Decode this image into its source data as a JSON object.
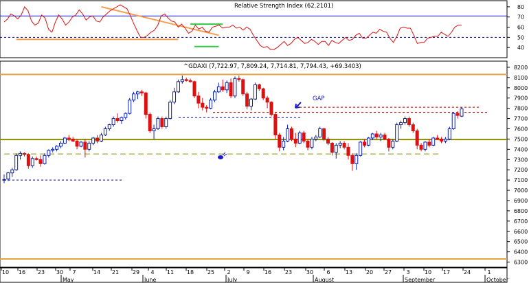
{
  "chart_data": [
    {
      "type": "line",
      "title": "Relative Strength Index (62.2101)",
      "y_ticks": [
        40,
        50,
        60,
        70,
        80
      ],
      "ylim": [
        30,
        86
      ],
      "reference_lines": [
        {
          "value": 71,
          "style": "solid",
          "color": "#1a1acc"
        },
        {
          "value": 50,
          "style": "dashed",
          "color": "#000080"
        }
      ],
      "series": [
        {
          "color": "#dd1111",
          "values": [
            65,
            68,
            73,
            71,
            68,
            72,
            80,
            76,
            66,
            62,
            64,
            72,
            69,
            58,
            55,
            65,
            72,
            68,
            62,
            65,
            70,
            72,
            77,
            73,
            67,
            70,
            71,
            66,
            65,
            70,
            73,
            76,
            78,
            80,
            82,
            80,
            78,
            71,
            63,
            56,
            50,
            50,
            52,
            55,
            57,
            62,
            71,
            73,
            69,
            66,
            65,
            60,
            63,
            59,
            54,
            56,
            62,
            58,
            60,
            56,
            55,
            60,
            61,
            62,
            59,
            60,
            60,
            62,
            59,
            60,
            57,
            60,
            58,
            52,
            47,
            42,
            40,
            41,
            38,
            38,
            40,
            43,
            46,
            42,
            44,
            48,
            50,
            47,
            44,
            45,
            48,
            46,
            43,
            46,
            46,
            42,
            47,
            45,
            44,
            47,
            50,
            47,
            48,
            52,
            54,
            49,
            49,
            52,
            55,
            54,
            58,
            56,
            55,
            49,
            45,
            51,
            59,
            60,
            59,
            59,
            52,
            44,
            45,
            45,
            49,
            50,
            51,
            51,
            55,
            53,
            51,
            55,
            60,
            62,
            62
          ]
        }
      ],
      "annotations": [
        {
          "type": "trendline",
          "color": "#f5a050",
          "from": [
            24,
            80
          ],
          "to": [
            53,
            52
          ]
        },
        {
          "type": "trendline",
          "color": "#f5a050",
          "from": [
            3,
            48
          ],
          "to": [
            43,
            48
          ]
        },
        {
          "type": "trendline",
          "color": "#2ecc40",
          "from": [
            46,
            63
          ],
          "to": [
            54,
            63
          ]
        },
        {
          "type": "trendline",
          "color": "#2ecc40",
          "from": [
            47,
            41
          ],
          "to": [
            53,
            41
          ]
        }
      ]
    },
    {
      "type": "candlestick",
      "title": "^GDAXI (7,722.97, 7,809.24, 7,714.81, 7,794.43, +69.3403)",
      "ylim": [
        6250,
        8260
      ],
      "y_ticks": [
        6300,
        6400,
        6500,
        6600,
        6700,
        6800,
        6900,
        7000,
        7100,
        7200,
        7300,
        7400,
        7500,
        7600,
        7700,
        7800,
        7900,
        8000,
        8100,
        8200
      ],
      "x_ticks": [
        "10",
        "16",
        "23",
        "30",
        "7",
        "14",
        "21",
        "29",
        "4",
        "11",
        "18",
        "25",
        "2",
        "9",
        "16",
        "23",
        "30",
        "6",
        "13",
        "20",
        "27",
        "3",
        "10",
        "17",
        "24",
        "1"
      ],
      "month_labels": [
        "May",
        "June",
        "July",
        "August",
        "September",
        "October"
      ],
      "colors": {
        "up": "#0b1fa8",
        "down": "#dd1111"
      },
      "candles": [
        {
          "o": 7100,
          "h": 7155,
          "l": 7070,
          "c": 7105
        },
        {
          "o": 7110,
          "h": 7180,
          "l": 7090,
          "c": 7170
        },
        {
          "o": 7170,
          "h": 7220,
          "l": 7130,
          "c": 7200
        },
        {
          "o": 7200,
          "h": 7360,
          "l": 7190,
          "c": 7340
        },
        {
          "o": 7340,
          "h": 7380,
          "l": 7300,
          "c": 7360
        },
        {
          "o": 7360,
          "h": 7370,
          "l": 7330,
          "c": 7350
        },
        {
          "o": 7350,
          "h": 7360,
          "l": 7210,
          "c": 7240
        },
        {
          "o": 7240,
          "h": 7330,
          "l": 7220,
          "c": 7310
        },
        {
          "o": 7310,
          "h": 7330,
          "l": 7290,
          "c": 7300
        },
        {
          "o": 7300,
          "h": 7340,
          "l": 7230,
          "c": 7260
        },
        {
          "o": 7260,
          "h": 7360,
          "l": 7250,
          "c": 7340
        },
        {
          "o": 7340,
          "h": 7400,
          "l": 7320,
          "c": 7390
        },
        {
          "o": 7390,
          "h": 7420,
          "l": 7370,
          "c": 7400
        },
        {
          "o": 7400,
          "h": 7440,
          "l": 7380,
          "c": 7430
        },
        {
          "o": 7430,
          "h": 7480,
          "l": 7410,
          "c": 7460
        },
        {
          "o": 7460,
          "h": 7520,
          "l": 7450,
          "c": 7510
        },
        {
          "o": 7510,
          "h": 7540,
          "l": 7480,
          "c": 7500
        },
        {
          "o": 7500,
          "h": 7520,
          "l": 7470,
          "c": 7480
        },
        {
          "o": 7480,
          "h": 7500,
          "l": 7400,
          "c": 7430
        },
        {
          "o": 7430,
          "h": 7480,
          "l": 7420,
          "c": 7470
        },
        {
          "o": 7470,
          "h": 7500,
          "l": 7320,
          "c": 7400
        },
        {
          "o": 7400,
          "h": 7480,
          "l": 7380,
          "c": 7460
        },
        {
          "o": 7460,
          "h": 7520,
          "l": 7440,
          "c": 7510
        },
        {
          "o": 7510,
          "h": 7540,
          "l": 7460,
          "c": 7480
        },
        {
          "o": 7480,
          "h": 7560,
          "l": 7470,
          "c": 7540
        },
        {
          "o": 7540,
          "h": 7620,
          "l": 7530,
          "c": 7600
        },
        {
          "o": 7600,
          "h": 7650,
          "l": 7580,
          "c": 7640
        },
        {
          "o": 7640,
          "h": 7720,
          "l": 7620,
          "c": 7700
        },
        {
          "o": 7700,
          "h": 7750,
          "l": 7660,
          "c": 7680
        },
        {
          "o": 7680,
          "h": 7720,
          "l": 7650,
          "c": 7710
        },
        {
          "o": 7710,
          "h": 7760,
          "l": 7690,
          "c": 7750
        },
        {
          "o": 7750,
          "h": 7900,
          "l": 7740,
          "c": 7880
        },
        {
          "o": 7880,
          "h": 7960,
          "l": 7860,
          "c": 7940
        },
        {
          "o": 7940,
          "h": 7970,
          "l": 7890,
          "c": 7960
        },
        {
          "o": 7960,
          "h": 7980,
          "l": 7920,
          "c": 7950
        },
        {
          "o": 7950,
          "h": 7960,
          "l": 7700,
          "c": 7740
        },
        {
          "o": 7740,
          "h": 7760,
          "l": 7560,
          "c": 7580
        },
        {
          "o": 7580,
          "h": 7640,
          "l": 7500,
          "c": 7600
        },
        {
          "o": 7600,
          "h": 7720,
          "l": 7590,
          "c": 7700
        },
        {
          "o": 7700,
          "h": 7720,
          "l": 7600,
          "c": 7620
        },
        {
          "o": 7620,
          "h": 7720,
          "l": 7600,
          "c": 7700
        },
        {
          "o": 7700,
          "h": 7880,
          "l": 7690,
          "c": 7860
        },
        {
          "o": 7860,
          "h": 8000,
          "l": 7840,
          "c": 7960
        },
        {
          "o": 7960,
          "h": 8080,
          "l": 7950,
          "c": 8060
        },
        {
          "o": 8060,
          "h": 8120,
          "l": 8040,
          "c": 8080
        },
        {
          "o": 8080,
          "h": 8100,
          "l": 8060,
          "c": 8070
        },
        {
          "o": 8070,
          "h": 8090,
          "l": 8050,
          "c": 8060
        },
        {
          "o": 8060,
          "h": 8070,
          "l": 7900,
          "c": 7920
        },
        {
          "o": 7920,
          "h": 7960,
          "l": 7800,
          "c": 7850
        },
        {
          "o": 7850,
          "h": 7900,
          "l": 7780,
          "c": 7810
        },
        {
          "o": 7810,
          "h": 7830,
          "l": 7760,
          "c": 7800
        },
        {
          "o": 7800,
          "h": 7900,
          "l": 7790,
          "c": 7880
        },
        {
          "o": 7880,
          "h": 7980,
          "l": 7860,
          "c": 7960
        },
        {
          "o": 7960,
          "h": 8050,
          "l": 7950,
          "c": 8010
        },
        {
          "o": 8010,
          "h": 8080,
          "l": 7960,
          "c": 7980
        },
        {
          "o": 7980,
          "h": 8070,
          "l": 7950,
          "c": 8050
        },
        {
          "o": 8050,
          "h": 8090,
          "l": 7900,
          "c": 7920
        },
        {
          "o": 7920,
          "h": 8110,
          "l": 7900,
          "c": 8090
        },
        {
          "o": 8090,
          "h": 8120,
          "l": 8060,
          "c": 8080
        },
        {
          "o": 8080,
          "h": 8090,
          "l": 7920,
          "c": 7940
        },
        {
          "o": 7940,
          "h": 7960,
          "l": 7790,
          "c": 7820
        },
        {
          "o": 7820,
          "h": 7900,
          "l": 7780,
          "c": 7890
        },
        {
          "o": 7890,
          "h": 8050,
          "l": 7880,
          "c": 8030
        },
        {
          "o": 8030,
          "h": 8040,
          "l": 7970,
          "c": 7990
        },
        {
          "o": 7990,
          "h": 8000,
          "l": 7880,
          "c": 7900
        },
        {
          "o": 7900,
          "h": 7920,
          "l": 7800,
          "c": 7860
        },
        {
          "o": 7860,
          "h": 7870,
          "l": 7720,
          "c": 7740
        },
        {
          "o": 7740,
          "h": 7760,
          "l": 7500,
          "c": 7540
        },
        {
          "o": 7540,
          "h": 7560,
          "l": 7380,
          "c": 7420
        },
        {
          "o": 7420,
          "h": 7520,
          "l": 7390,
          "c": 7480
        },
        {
          "o": 7480,
          "h": 7640,
          "l": 7470,
          "c": 7600
        },
        {
          "o": 7600,
          "h": 7620,
          "l": 7480,
          "c": 7500
        },
        {
          "o": 7500,
          "h": 7560,
          "l": 7420,
          "c": 7460
        },
        {
          "o": 7460,
          "h": 7580,
          "l": 7450,
          "c": 7560
        },
        {
          "o": 7560,
          "h": 7580,
          "l": 7460,
          "c": 7480
        },
        {
          "o": 7480,
          "h": 7500,
          "l": 7390,
          "c": 7420
        },
        {
          "o": 7420,
          "h": 7520,
          "l": 7400,
          "c": 7500
        },
        {
          "o": 7500,
          "h": 7540,
          "l": 7480,
          "c": 7520
        },
        {
          "o": 7520,
          "h": 7620,
          "l": 7510,
          "c": 7600
        },
        {
          "o": 7600,
          "h": 7610,
          "l": 7480,
          "c": 7500
        },
        {
          "o": 7500,
          "h": 7520,
          "l": 7440,
          "c": 7460
        },
        {
          "o": 7460,
          "h": 7470,
          "l": 7340,
          "c": 7370
        },
        {
          "o": 7370,
          "h": 7460,
          "l": 7310,
          "c": 7440
        },
        {
          "o": 7440,
          "h": 7480,
          "l": 7410,
          "c": 7460
        },
        {
          "o": 7460,
          "h": 7480,
          "l": 7400,
          "c": 7420
        },
        {
          "o": 7420,
          "h": 7460,
          "l": 7300,
          "c": 7340
        },
        {
          "o": 7340,
          "h": 7360,
          "l": 7190,
          "c": 7260
        },
        {
          "o": 7260,
          "h": 7360,
          "l": 7200,
          "c": 7340
        },
        {
          "o": 7340,
          "h": 7480,
          "l": 7330,
          "c": 7470
        },
        {
          "o": 7470,
          "h": 7500,
          "l": 7420,
          "c": 7440
        },
        {
          "o": 7440,
          "h": 7520,
          "l": 7430,
          "c": 7510
        },
        {
          "o": 7510,
          "h": 7560,
          "l": 7490,
          "c": 7550
        },
        {
          "o": 7550,
          "h": 7580,
          "l": 7500,
          "c": 7520
        },
        {
          "o": 7520,
          "h": 7560,
          "l": 7480,
          "c": 7540
        },
        {
          "o": 7540,
          "h": 7560,
          "l": 7490,
          "c": 7500
        },
        {
          "o": 7500,
          "h": 7510,
          "l": 7380,
          "c": 7420
        },
        {
          "o": 7420,
          "h": 7500,
          "l": 7400,
          "c": 7480
        },
        {
          "o": 7480,
          "h": 7660,
          "l": 7470,
          "c": 7640
        },
        {
          "o": 7640,
          "h": 7680,
          "l": 7600,
          "c": 7660
        },
        {
          "o": 7660,
          "h": 7720,
          "l": 7640,
          "c": 7700
        },
        {
          "o": 7700,
          "h": 7720,
          "l": 7620,
          "c": 7640
        },
        {
          "o": 7640,
          "h": 7660,
          "l": 7560,
          "c": 7580
        },
        {
          "o": 7580,
          "h": 7600,
          "l": 7400,
          "c": 7440
        },
        {
          "o": 7440,
          "h": 7460,
          "l": 7380,
          "c": 7400
        },
        {
          "o": 7400,
          "h": 7480,
          "l": 7380,
          "c": 7470
        },
        {
          "o": 7470,
          "h": 7500,
          "l": 7420,
          "c": 7440
        },
        {
          "o": 7440,
          "h": 7520,
          "l": 7430,
          "c": 7510
        },
        {
          "o": 7510,
          "h": 7540,
          "l": 7490,
          "c": 7500
        },
        {
          "o": 7500,
          "h": 7520,
          "l": 7460,
          "c": 7480
        },
        {
          "o": 7480,
          "h": 7520,
          "l": 7460,
          "c": 7500
        },
        {
          "o": 7500,
          "h": 7620,
          "l": 7490,
          "c": 7600
        },
        {
          "o": 7600,
          "h": 7760,
          "l": 7590,
          "c": 7750
        },
        {
          "o": 7750,
          "h": 7770,
          "l": 7700,
          "c": 7730
        },
        {
          "o": 7723,
          "h": 7809,
          "l": 7715,
          "c": 7794
        }
      ],
      "horizontal_lines": [
        {
          "value": 8130,
          "color": "#e8a23a",
          "style": "solid"
        },
        {
          "value": 7495,
          "color": "#8c8c00",
          "style": "solid"
        },
        {
          "value": 6330,
          "color": "#e8a23a",
          "style": "solid"
        },
        {
          "value": 7355,
          "color": "#8c8c00",
          "style": "dashed"
        },
        {
          "value": 7810,
          "color": "#aa0000",
          "style": "dashed"
        },
        {
          "value": 7760,
          "color": "#aa0000",
          "style": "dashed"
        },
        {
          "value": 7710,
          "color": "#000080",
          "style": "dashed"
        },
        {
          "value": 7100,
          "color": "#000080",
          "style": "dashed"
        }
      ],
      "annotations": [
        {
          "type": "text",
          "text": "GAP",
          "color": "#1a1acc"
        },
        {
          "type": "arrow",
          "color": "#1a1acc",
          "points_to": "gap"
        }
      ]
    }
  ]
}
